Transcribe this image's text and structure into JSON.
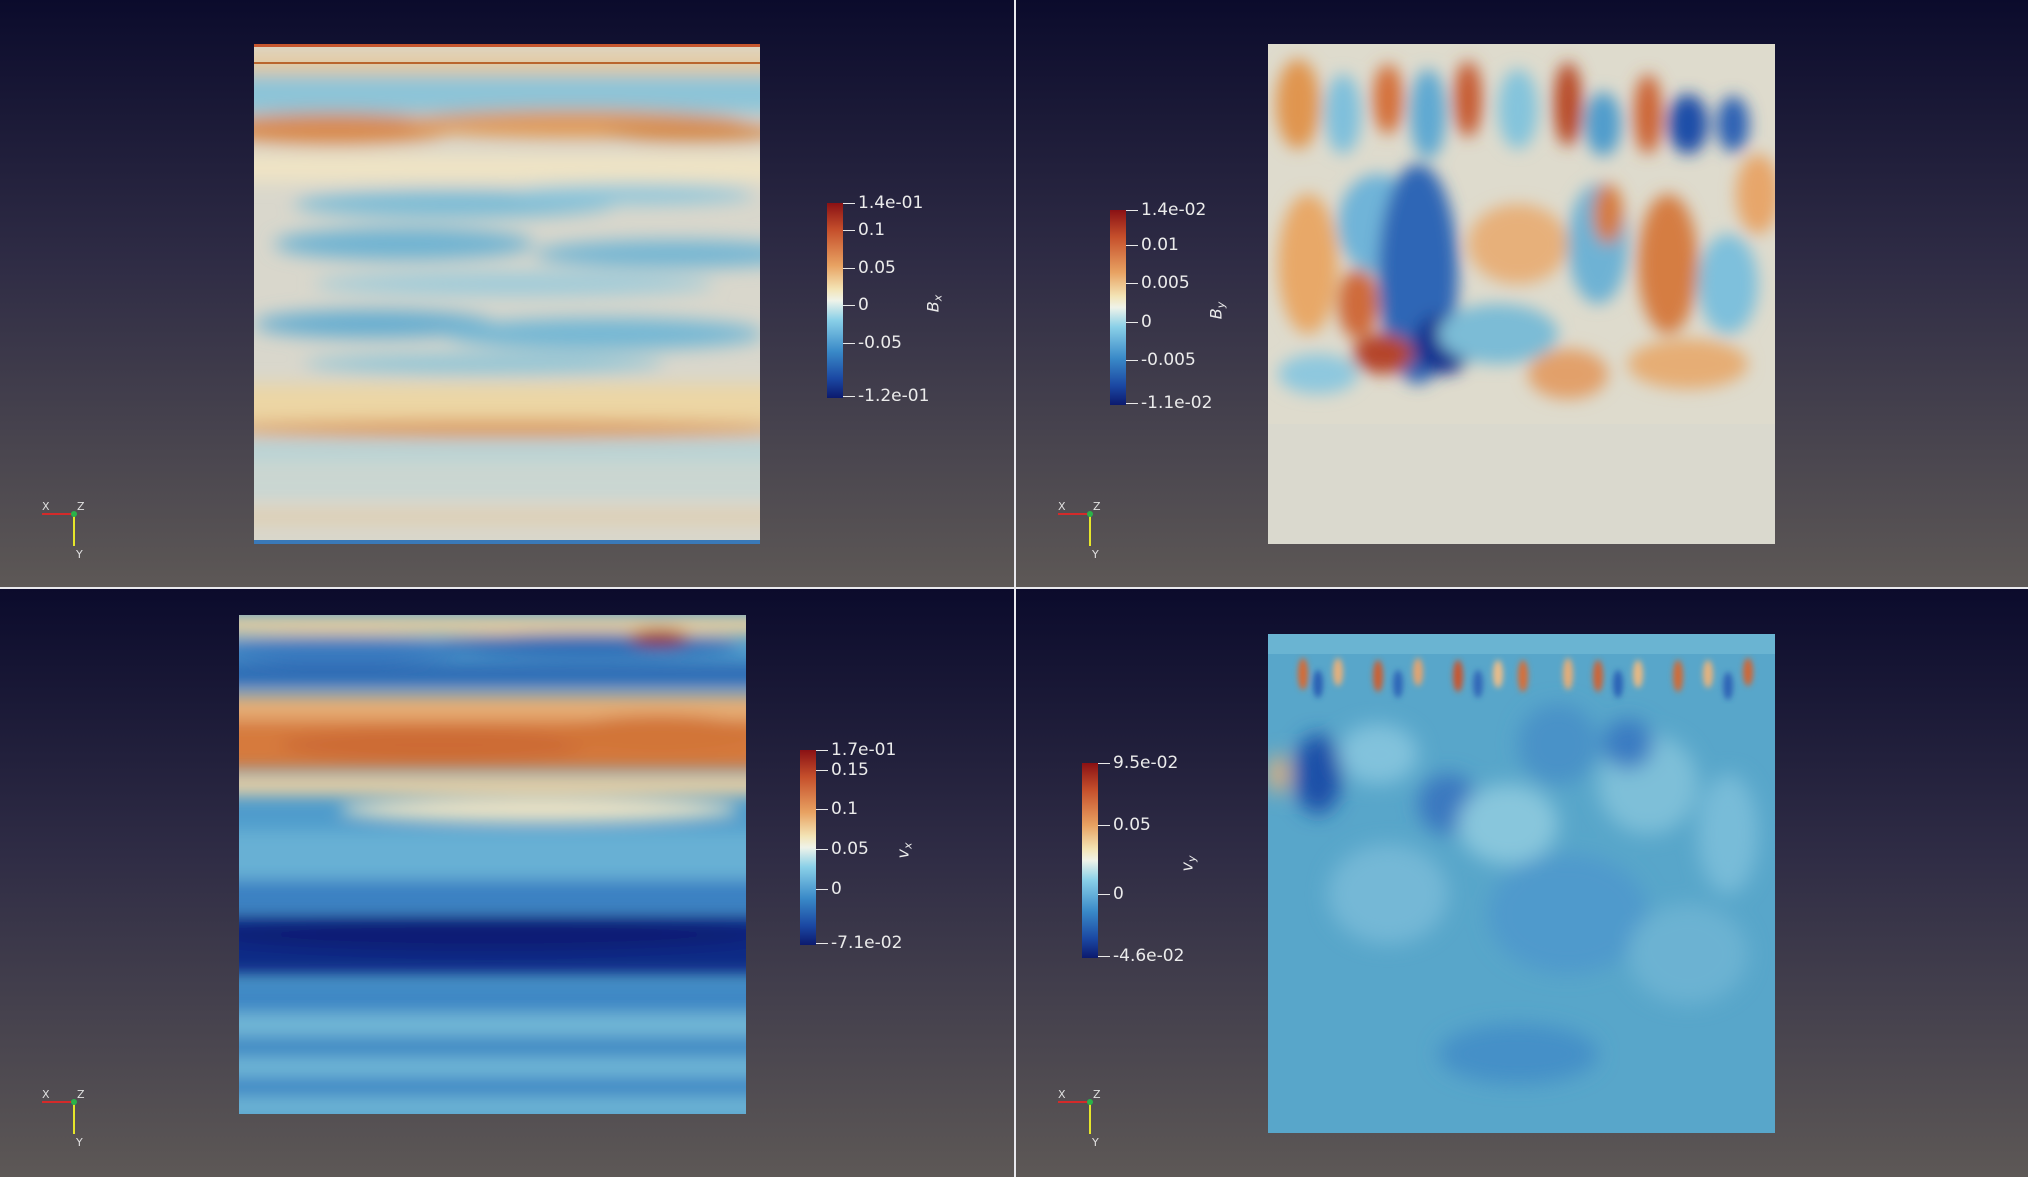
{
  "views": {
    "top_left": {
      "colorbar": {
        "title": "B",
        "title_sub": "x",
        "ticks": [
          "1.4e-01",
          "0.1",
          "0.05",
          "0",
          "-0.05",
          "-1.2e-01"
        ],
        "range": [
          -0.12,
          0.14
        ]
      }
    },
    "top_right": {
      "colorbar": {
        "title": "B",
        "title_sub": "y",
        "ticks": [
          "1.4e-02",
          "0.01",
          "0.005",
          "0",
          "-0.005",
          "-1.1e-02"
        ],
        "range": [
          -0.011,
          0.014
        ]
      }
    },
    "bottom_left": {
      "colorbar": {
        "title": "v",
        "title_sub": "x",
        "ticks": [
          "1.7e-01",
          "0.15",
          "0.1",
          "0.05",
          "0",
          "-7.1e-02"
        ],
        "range": [
          -0.071,
          0.17
        ]
      }
    },
    "bottom_right": {
      "colorbar": {
        "title": "v",
        "title_sub": "y",
        "ticks": [
          "9.5e-02",
          "0.05",
          "0",
          "-4.6e-02"
        ],
        "range": [
          -0.046,
          0.095
        ]
      }
    }
  },
  "orientation_axes": {
    "x_label": "X",
    "y_label": "Y",
    "z_label": "Z",
    "x_color": "#d42a2a",
    "y_color": "#e6e62a",
    "z_color": "#2ab24a"
  },
  "colormap": {
    "high": "#8a1114",
    "mid": "#eff3e9",
    "low": "#0c1a6e"
  }
}
